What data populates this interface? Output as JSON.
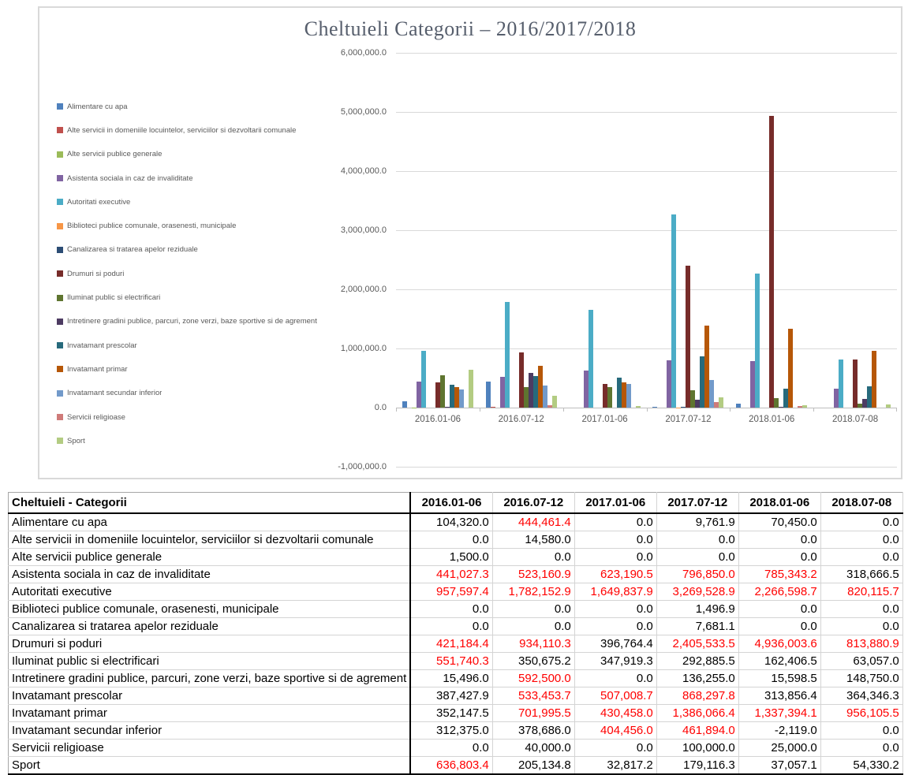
{
  "chart_data": {
    "type": "bar",
    "title": "Cheltuieli Categorii – 2016/2017/2018",
    "categories": [
      "2016.01-06",
      "2016.07-12",
      "2017.01-06",
      "2017.07-12",
      "2018.01-06",
      "2018.07-08"
    ],
    "series": [
      {
        "name": "Alimentare cu apa",
        "color": "#4F81BD",
        "values": [
          104320.0,
          444461.4,
          0.0,
          9761.9,
          70450.0,
          0.0
        ]
      },
      {
        "name": "Alte servicii in domeniile locuintelor, serviciilor si dezvoltarii comunale",
        "color": "#C0504D",
        "values": [
          0.0,
          14580.0,
          0.0,
          0.0,
          0.0,
          0.0
        ]
      },
      {
        "name": "Alte servicii publice generale",
        "color": "#9BBB59",
        "values": [
          1500.0,
          0.0,
          0.0,
          0.0,
          0.0,
          0.0
        ]
      },
      {
        "name": "Asistenta sociala in caz de invaliditate",
        "color": "#8064A2",
        "values": [
          441027.3,
          523160.9,
          623190.5,
          796850.0,
          785343.2,
          318666.5
        ]
      },
      {
        "name": "Autoritati executive",
        "color": "#4BACC6",
        "values": [
          957597.4,
          1782152.9,
          1649837.9,
          3269528.9,
          2266598.7,
          820115.7
        ]
      },
      {
        "name": "Biblioteci publice comunale, orasenesti, municipale",
        "color": "#F79646",
        "values": [
          0.0,
          0.0,
          0.0,
          1496.9,
          0.0,
          0.0
        ]
      },
      {
        "name": "Canalizarea si tratarea apelor reziduale",
        "color": "#2C4D75",
        "values": [
          0.0,
          0.0,
          0.0,
          7681.1,
          0.0,
          0.0
        ]
      },
      {
        "name": "Drumuri si poduri",
        "color": "#772C2A",
        "values": [
          421184.4,
          934110.3,
          396764.4,
          2405533.5,
          4936003.6,
          813880.9
        ]
      },
      {
        "name": "Iluminat public si electrificari",
        "color": "#5F7530",
        "values": [
          551740.3,
          350675.2,
          347919.3,
          292885.5,
          162406.5,
          63057.0
        ]
      },
      {
        "name": "Intretinere gradini publice, parcuri, zone verzi, baze sportive si de agrement",
        "color": "#4D3B62",
        "values": [
          15496.0,
          592500.0,
          0.0,
          136255.0,
          15598.5,
          148750.0
        ]
      },
      {
        "name": "Invatamant prescolar",
        "color": "#276A7C",
        "values": [
          387427.9,
          533453.7,
          507008.7,
          868297.8,
          313856.4,
          364346.3
        ]
      },
      {
        "name": "Invatamant primar",
        "color": "#B65708",
        "values": [
          352147.5,
          701995.5,
          430458.0,
          1386066.4,
          1337394.1,
          956105.5
        ]
      },
      {
        "name": "Invatamant secundar inferior",
        "color": "#729ACA",
        "values": [
          312375.0,
          378686.0,
          404456.0,
          461894.0,
          -2119.0,
          0.0
        ]
      },
      {
        "name": "Servicii religioase",
        "color": "#CF7B79",
        "values": [
          0.0,
          40000.0,
          0.0,
          100000.0,
          25000.0,
          0.0
        ]
      },
      {
        "name": "Sport",
        "color": "#B3CC82",
        "values": [
          636803.4,
          205134.8,
          32817.2,
          179116.3,
          37057.1,
          54330.2
        ]
      }
    ],
    "ylim": [
      -1000000,
      6000000
    ],
    "ytick_interval": 1000000,
    "ytick_labels": [
      "6,000,000.0",
      "5,000,000.0",
      "4,000,000.0",
      "3,000,000.0",
      "2,000,000.0",
      "1,000,000.0",
      "0.0",
      "-1,000,000.0"
    ],
    "grid": true,
    "legend_position": "left"
  },
  "table": {
    "header": [
      "Cheltuieli - Categorii",
      "2016.01-06",
      "2016.07-12",
      "2017.01-06",
      "2017.07-12",
      "2018.01-06",
      "2018.07-08"
    ],
    "alert_text_color": "#FF0000",
    "rows": [
      {
        "label": "Alimentare cu apa",
        "values": [
          "104,320.0",
          "444,461.4",
          "0.0",
          "9,761.9",
          "70,450.0",
          "0.0"
        ],
        "red": [
          0,
          1,
          0,
          0,
          0,
          0
        ]
      },
      {
        "label": "Alte servicii in domeniile locuintelor, serviciilor si dezvoltarii comunale",
        "values": [
          "0.0",
          "14,580.0",
          "0.0",
          "0.0",
          "0.0",
          "0.0"
        ],
        "red": [
          0,
          0,
          0,
          0,
          0,
          0
        ]
      },
      {
        "label": "Alte servicii publice generale",
        "values": [
          "1,500.0",
          "0.0",
          "0.0",
          "0.0",
          "0.0",
          "0.0"
        ],
        "red": [
          0,
          0,
          0,
          0,
          0,
          0
        ]
      },
      {
        "label": "Asistenta sociala in caz de invaliditate",
        "values": [
          "441,027.3",
          "523,160.9",
          "623,190.5",
          "796,850.0",
          "785,343.2",
          "318,666.5"
        ],
        "red": [
          1,
          1,
          1,
          1,
          1,
          0
        ]
      },
      {
        "label": "Autoritati executive",
        "values": [
          "957,597.4",
          "1,782,152.9",
          "1,649,837.9",
          "3,269,528.9",
          "2,266,598.7",
          "820,115.7"
        ],
        "red": [
          1,
          1,
          1,
          1,
          1,
          1
        ]
      },
      {
        "label": "Biblioteci publice comunale, orasenesti, municipale",
        "values": [
          "0.0",
          "0.0",
          "0.0",
          "1,496.9",
          "0.0",
          "0.0"
        ],
        "red": [
          0,
          0,
          0,
          0,
          0,
          0
        ]
      },
      {
        "label": "Canalizarea si tratarea apelor reziduale",
        "values": [
          "0.0",
          "0.0",
          "0.0",
          "7,681.1",
          "0.0",
          "0.0"
        ],
        "red": [
          0,
          0,
          0,
          0,
          0,
          0
        ]
      },
      {
        "label": "Drumuri si poduri",
        "values": [
          "421,184.4",
          "934,110.3",
          "396,764.4",
          "2,405,533.5",
          "4,936,003.6",
          "813,880.9"
        ],
        "red": [
          1,
          1,
          0,
          1,
          1,
          1
        ]
      },
      {
        "label": "Iluminat public si electrificari",
        "values": [
          "551,740.3",
          "350,675.2",
          "347,919.3",
          "292,885.5",
          "162,406.5",
          "63,057.0"
        ],
        "red": [
          1,
          0,
          0,
          0,
          0,
          0
        ]
      },
      {
        "label": "Intretinere gradini publice, parcuri, zone verzi, baze sportive si de agrement",
        "values": [
          "15,496.0",
          "592,500.0",
          "0.0",
          "136,255.0",
          "15,598.5",
          "148,750.0"
        ],
        "red": [
          0,
          1,
          0,
          0,
          0,
          0
        ]
      },
      {
        "label": "Invatamant prescolar",
        "values": [
          "387,427.9",
          "533,453.7",
          "507,008.7",
          "868,297.8",
          "313,856.4",
          "364,346.3"
        ],
        "red": [
          0,
          1,
          1,
          1,
          0,
          0
        ]
      },
      {
        "label": "Invatamant primar",
        "values": [
          "352,147.5",
          "701,995.5",
          "430,458.0",
          "1,386,066.4",
          "1,337,394.1",
          "956,105.5"
        ],
        "red": [
          0,
          1,
          1,
          1,
          1,
          1
        ]
      },
      {
        "label": "Invatamant secundar inferior",
        "values": [
          "312,375.0",
          "378,686.0",
          "404,456.0",
          "461,894.0",
          "-2,119.0",
          "0.0"
        ],
        "red": [
          0,
          0,
          1,
          1,
          0,
          0
        ]
      },
      {
        "label": "Servicii religioase",
        "values": [
          "0.0",
          "40,000.0",
          "0.0",
          "100,000.0",
          "25,000.0",
          "0.0"
        ],
        "red": [
          0,
          0,
          0,
          0,
          0,
          0
        ]
      },
      {
        "label": "Sport",
        "values": [
          "636,803.4",
          "205,134.8",
          "32,817.2",
          "179,116.3",
          "37,057.1",
          "54,330.2"
        ],
        "red": [
          1,
          0,
          0,
          0,
          0,
          0
        ]
      }
    ]
  }
}
